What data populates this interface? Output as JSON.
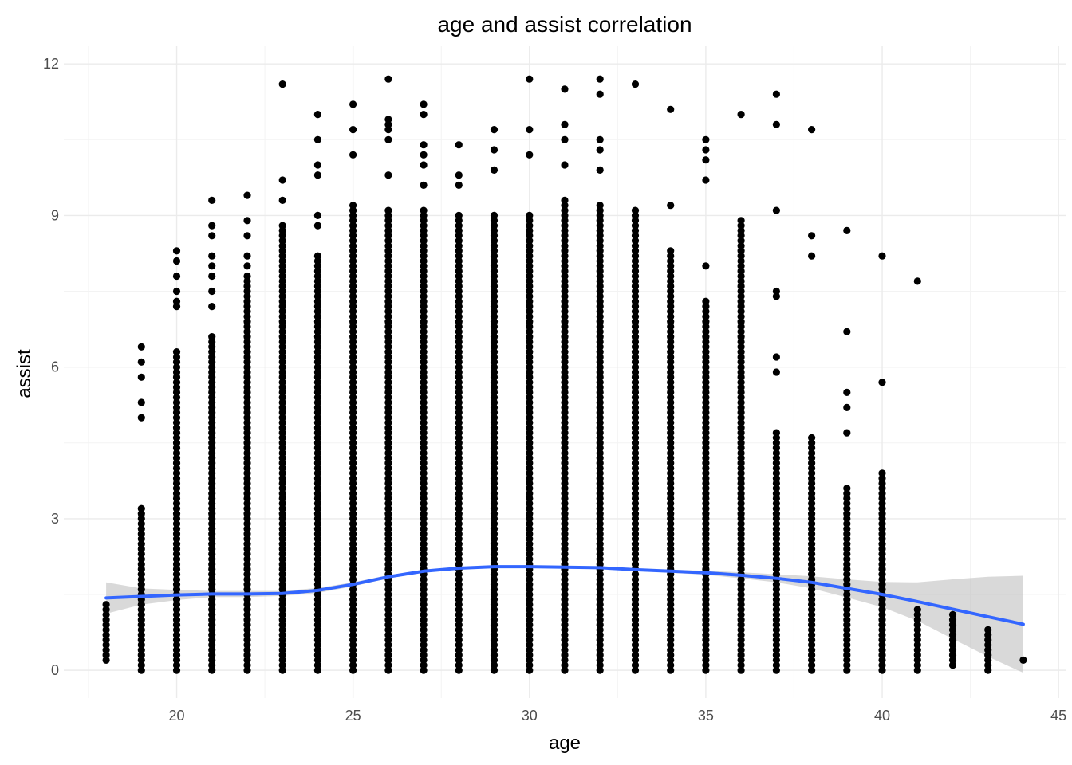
{
  "chart_data": {
    "type": "scatter",
    "title": "age and assist correlation",
    "xlabel": "age",
    "ylabel": "assist",
    "xlim": [
      16.8,
      45.2
    ],
    "ylim": [
      -0.55,
      12.35
    ],
    "x_ticks": [
      20,
      25,
      30,
      35,
      40,
      45
    ],
    "y_ticks": [
      0,
      3,
      6,
      9,
      12
    ],
    "x_tick_labels": [
      "20",
      "25",
      "30",
      "35",
      "40",
      "45"
    ],
    "y_tick_labels": [
      "0",
      "3",
      "6",
      "9",
      "12"
    ],
    "grid": true,
    "legend": "none",
    "colors": {
      "points": "#000000",
      "smooth_line": "#3366ff",
      "ribbon": "#bfbfbf",
      "grid": "#ebebeb"
    },
    "points_by_age": [
      {
        "age": 18,
        "min": 0.2,
        "max": 1.3,
        "extra": []
      },
      {
        "age": 19,
        "min": 0,
        "max": 3.2,
        "extra": [
          5.0,
          5.3,
          5.8,
          6.1,
          6.4
        ]
      },
      {
        "age": 20,
        "min": 0,
        "max": 6.3,
        "extra": [
          7.2,
          7.3,
          7.5,
          7.8,
          8.1,
          8.3
        ]
      },
      {
        "age": 21,
        "min": 0,
        "max": 6.6,
        "extra": [
          7.2,
          7.5,
          7.8,
          8.0,
          8.2,
          8.6,
          8.8,
          9.3
        ]
      },
      {
        "age": 22,
        "min": 0,
        "max": 7.8,
        "extra": [
          8.0,
          8.2,
          8.6,
          8.9,
          9.4
        ]
      },
      {
        "age": 23,
        "min": 0,
        "max": 8.8,
        "extra": [
          9.3,
          9.7,
          11.6
        ]
      },
      {
        "age": 24,
        "min": 0,
        "max": 8.2,
        "extra": [
          8.8,
          9.0,
          9.8,
          10.0,
          10.5,
          11.0
        ]
      },
      {
        "age": 25,
        "min": 0,
        "max": 9.2,
        "extra": [
          10.2,
          10.7,
          11.2
        ]
      },
      {
        "age": 26,
        "min": 0,
        "max": 9.1,
        "extra": [
          9.8,
          10.5,
          10.7,
          10.8,
          10.9,
          11.7
        ]
      },
      {
        "age": 27,
        "min": 0,
        "max": 9.1,
        "extra": [
          9.6,
          10.0,
          10.2,
          10.4,
          11.0,
          11.2
        ]
      },
      {
        "age": 28,
        "min": 0,
        "max": 9.0,
        "extra": [
          9.6,
          9.8,
          10.4
        ]
      },
      {
        "age": 29,
        "min": 0,
        "max": 9.0,
        "extra": [
          9.9,
          10.3,
          10.7
        ]
      },
      {
        "age": 30,
        "min": 0,
        "max": 9.0,
        "extra": [
          10.2,
          10.7,
          11.7
        ]
      },
      {
        "age": 31,
        "min": 0,
        "max": 9.3,
        "extra": [
          10.0,
          10.5,
          10.8,
          11.5
        ]
      },
      {
        "age": 32,
        "min": 0,
        "max": 9.2,
        "extra": [
          9.9,
          10.3,
          10.5,
          11.4,
          11.7
        ]
      },
      {
        "age": 33,
        "min": 0,
        "max": 9.1,
        "extra": [
          11.6
        ]
      },
      {
        "age": 34,
        "min": 0,
        "max": 8.3,
        "extra": [
          9.2,
          11.1
        ]
      },
      {
        "age": 35,
        "min": 0,
        "max": 7.3,
        "extra": [
          8.0,
          9.7,
          10.1,
          10.3,
          10.5
        ]
      },
      {
        "age": 36,
        "min": 0,
        "max": 8.9,
        "extra": [
          11.0
        ]
      },
      {
        "age": 37,
        "min": 0,
        "max": 4.7,
        "extra": [
          5.9,
          6.2,
          7.4,
          7.5,
          9.1,
          10.8,
          11.4
        ]
      },
      {
        "age": 38,
        "min": 0,
        "max": 4.6,
        "extra": [
          8.2,
          8.6,
          10.7
        ]
      },
      {
        "age": 39,
        "min": 0,
        "max": 3.6,
        "extra": [
          4.7,
          5.2,
          5.5,
          6.7,
          8.7
        ]
      },
      {
        "age": 40,
        "min": 0,
        "max": 3.9,
        "extra": [
          5.7,
          8.2
        ]
      },
      {
        "age": 41,
        "min": 0,
        "max": 1.2,
        "extra": [
          7.7
        ]
      },
      {
        "age": 42,
        "min": 0.1,
        "max": 1.1,
        "extra": []
      },
      {
        "age": 43,
        "min": 0,
        "max": 0.8,
        "extra": []
      },
      {
        "age": 44,
        "min": 0.2,
        "max": 0.2,
        "extra": []
      }
    ],
    "smooth": {
      "x": [
        18,
        19,
        20,
        21,
        22,
        23,
        24,
        25,
        26,
        27,
        28,
        29,
        30,
        31,
        32,
        33,
        34,
        35,
        36,
        37,
        38,
        39,
        40,
        41,
        42,
        43,
        44
      ],
      "y": [
        1.43,
        1.46,
        1.49,
        1.51,
        1.51,
        1.52,
        1.58,
        1.7,
        1.85,
        1.96,
        2.02,
        2.05,
        2.05,
        2.04,
        2.03,
        1.99,
        1.96,
        1.93,
        1.88,
        1.82,
        1.74,
        1.62,
        1.5,
        1.36,
        1.21,
        1.06,
        0.91
      ],
      "lower": [
        1.12,
        1.3,
        1.39,
        1.45,
        1.45,
        1.47,
        1.53,
        1.66,
        1.82,
        1.94,
        2.0,
        2.03,
        2.03,
        2.02,
        2.01,
        1.97,
        1.93,
        1.89,
        1.82,
        1.74,
        1.62,
        1.44,
        1.25,
        0.98,
        0.62,
        0.27,
        -0.05
      ],
      "upper": [
        1.74,
        1.62,
        1.59,
        1.57,
        1.57,
        1.57,
        1.63,
        1.74,
        1.88,
        1.98,
        2.04,
        2.07,
        2.07,
        2.06,
        2.05,
        2.01,
        1.99,
        1.97,
        1.94,
        1.9,
        1.86,
        1.8,
        1.75,
        1.74,
        1.8,
        1.85,
        1.87
      ]
    }
  }
}
